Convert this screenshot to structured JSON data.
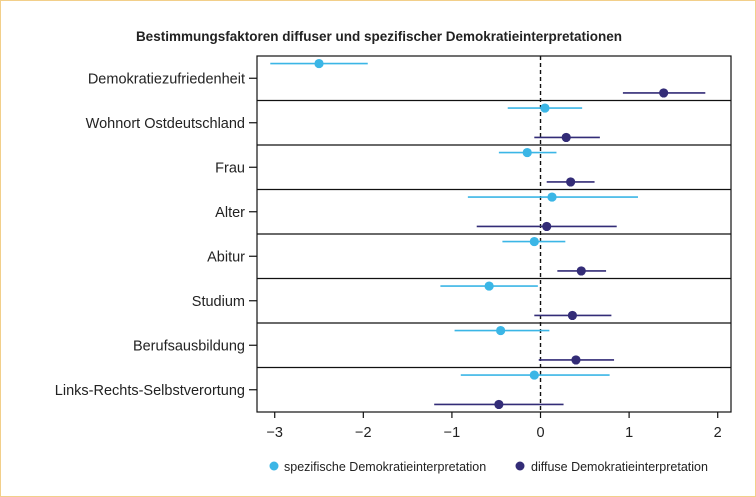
{
  "chart_data": {
    "type": "scatter",
    "title": "Bestimmungsfaktoren diffuser und spezifischer Demokratieinterpretationen",
    "xlim": [
      -3.2,
      2.15
    ],
    "xticks": [
      -3,
      -2,
      -1,
      0,
      1,
      2
    ],
    "xtick_labels": [
      "−3",
      "−2",
      "−1",
      "0",
      "1",
      "2"
    ],
    "reference_line_x": 0,
    "grid": false,
    "legend_position": "bottom-right",
    "categories": [
      "Demokratiezufriedenheit",
      "Wohnort Ostdeutschland",
      "Frau",
      "Alter",
      "Abitur",
      "Studium",
      "Berufsausbildung",
      "Links-Rechts-Selbstverortung"
    ],
    "series": [
      {
        "name": "spezifische Demokratieinterpretation",
        "color": "#3bb6e6",
        "estimates": [
          -2.5,
          0.05,
          -0.15,
          0.13,
          -0.07,
          -0.58,
          -0.45,
          -0.07
        ],
        "ci_low": [
          -3.05,
          -0.37,
          -0.47,
          -0.82,
          -0.43,
          -1.13,
          -0.97,
          -0.9
        ],
        "ci_high": [
          -1.95,
          0.47,
          0.18,
          1.1,
          0.28,
          -0.03,
          0.1,
          0.78
        ]
      },
      {
        "name": "diffuse Demokratieinterpretation",
        "color": "#332c77",
        "estimates": [
          1.39,
          0.29,
          0.34,
          0.07,
          0.46,
          0.36,
          0.4,
          -0.47
        ],
        "ci_low": [
          0.93,
          -0.07,
          0.07,
          -0.72,
          0.19,
          -0.07,
          -0.02,
          -1.2
        ],
        "ci_high": [
          1.86,
          0.67,
          0.61,
          0.86,
          0.74,
          0.8,
          0.83,
          0.26
        ]
      }
    ]
  }
}
